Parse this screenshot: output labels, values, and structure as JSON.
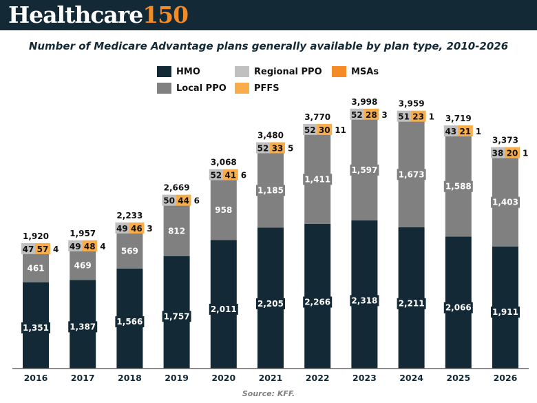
{
  "header": {
    "logo_main": "Healthcare",
    "logo_accent": "150"
  },
  "source": "Source: KFF.",
  "legend": [
    {
      "name": "HMO",
      "color": "#132936"
    },
    {
      "name": "Regional PPO",
      "color": "#c0c0c0"
    },
    {
      "name": "MSAs",
      "color": "#f58b26"
    },
    {
      "name": "Local PPO",
      "color": "#808080"
    },
    {
      "name": "PFFS",
      "color": "#f9ad4a"
    }
  ],
  "chart_data": {
    "type": "bar",
    "stacked": true,
    "title": "Number of Medicare Advantage plans generally available by plan type, 2010-2026",
    "xlabel": "",
    "ylabel": "",
    "categories": [
      "2016",
      "2017",
      "2018",
      "2019",
      "2020",
      "2021",
      "2022",
      "2023",
      "2024",
      "2025",
      "2026"
    ],
    "series": [
      {
        "name": "HMO",
        "color": "#132936",
        "values": [
          1351,
          1387,
          1566,
          1757,
          2011,
          2205,
          2266,
          2318,
          2211,
          2066,
          1911
        ]
      },
      {
        "name": "Local PPO",
        "color": "#808080",
        "values": [
          461,
          469,
          569,
          812,
          958,
          1185,
          1411,
          1597,
          1673,
          1588,
          1403
        ]
      },
      {
        "name": "Regional PPO",
        "color": "#c0c0c0",
        "values": [
          47,
          49,
          49,
          50,
          52,
          52,
          52,
          52,
          51,
          43,
          38
        ]
      },
      {
        "name": "PFFS",
        "color": "#f9ad4a",
        "values": [
          57,
          48,
          46,
          44,
          41,
          33,
          30,
          28,
          23,
          21,
          20
        ]
      },
      {
        "name": "MSAs",
        "color": "#f58b26",
        "values": [
          4,
          4,
          3,
          6,
          6,
          5,
          11,
          3,
          1,
          1,
          1
        ]
      }
    ],
    "totals": [
      "1,920",
      "1,957",
      "2,233",
      "2,669",
      "3,068",
      "3,480",
      "3,770",
      "3,998",
      "3,959",
      "3,719",
      "3,373"
    ],
    "ylim": [
      0,
      4200
    ],
    "grid": false,
    "legend_position": "top-center"
  }
}
